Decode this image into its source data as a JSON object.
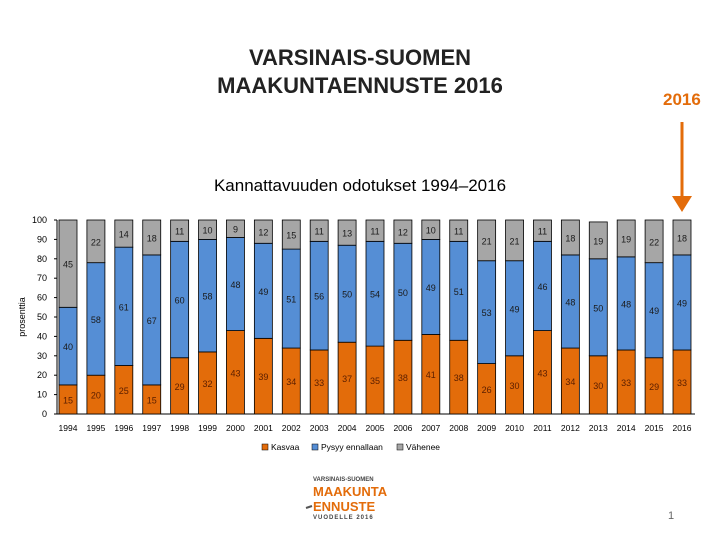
{
  "header": {
    "title_line1": "VARSINAIS-SUOMEN",
    "title_line2": "MAAKUNTAENNUSTE 2016",
    "highlight_year": "2016"
  },
  "logo": {
    "line1": "VARSINAIS-SUOMEN",
    "line2": "MAAKUNTA",
    "line3": "ENNUSTE",
    "line4": "VUODELLE 2016"
  },
  "page_number": "1",
  "colors": {
    "kasvaa": "#e36c0a",
    "pysyy": "#558ed5",
    "vahenee": "#a6a6a6",
    "arrow": "#e36c0a"
  },
  "chart_data": {
    "type": "bar",
    "stacked": true,
    "title": "Kannattavuuden odotukset 1994–2016",
    "xlabel": "",
    "ylabel": "prosenttia",
    "ylim": [
      0,
      100
    ],
    "yticks": [
      0,
      10,
      20,
      30,
      40,
      50,
      60,
      70,
      80,
      90,
      100
    ],
    "legend_position": "bottom",
    "categories": [
      "1994",
      "1995",
      "1996",
      "1997",
      "1998",
      "1999",
      "2000",
      "2001",
      "2002",
      "2003",
      "2004",
      "2005",
      "2006",
      "2007",
      "2008",
      "2009",
      "2010",
      "2011",
      "2012",
      "2013",
      "2014",
      "2015",
      "2016"
    ],
    "series": [
      {
        "name": "Kasvaa",
        "values": [
          15,
          20,
          25,
          15,
          29,
          32,
          43,
          39,
          34,
          33,
          37,
          35,
          38,
          41,
          38,
          26,
          30,
          43,
          34,
          30,
          33,
          29,
          33
        ]
      },
      {
        "name": "Pysyy ennallaan",
        "values": [
          40,
          58,
          61,
          67,
          60,
          58,
          48,
          49,
          51,
          56,
          50,
          54,
          50,
          49,
          51,
          53,
          49,
          46,
          48,
          50,
          48,
          49,
          49
        ]
      },
      {
        "name": "Vähenee",
        "values": [
          45,
          22,
          14,
          18,
          11,
          10,
          9,
          12,
          15,
          11,
          13,
          11,
          12,
          10,
          11,
          21,
          21,
          11,
          18,
          19,
          19,
          22,
          18
        ]
      }
    ]
  }
}
